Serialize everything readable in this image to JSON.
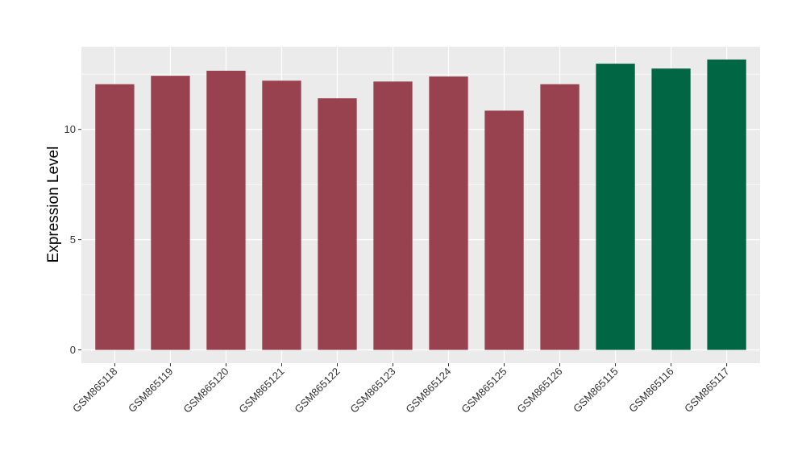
{
  "chart_data": {
    "type": "bar",
    "title": "",
    "xlabel": "",
    "ylabel": "Expression Level",
    "ylim": [
      -0.6,
      13.75
    ],
    "yticks": [
      0,
      5,
      10
    ],
    "grid": true,
    "legend": "none",
    "categories": [
      "GSM865118",
      "GSM865119",
      "GSM865120",
      "GSM865121",
      "GSM865122",
      "GSM865123",
      "GSM865124",
      "GSM865125",
      "GSM865126",
      "GSM865115",
      "GSM865116",
      "GSM865117"
    ],
    "values": [
      12.05,
      12.43,
      12.66,
      12.21,
      11.41,
      12.17,
      12.4,
      10.85,
      12.05,
      12.98,
      12.76,
      13.17
    ],
    "groups": [
      "a",
      "a",
      "a",
      "a",
      "a",
      "a",
      "a",
      "a",
      "a",
      "b",
      "b",
      "b"
    ],
    "colors": {
      "a": "#99424f",
      "b": "#006644"
    },
    "panel_color": "#ebebeb",
    "grid_color": "#ffffff"
  }
}
